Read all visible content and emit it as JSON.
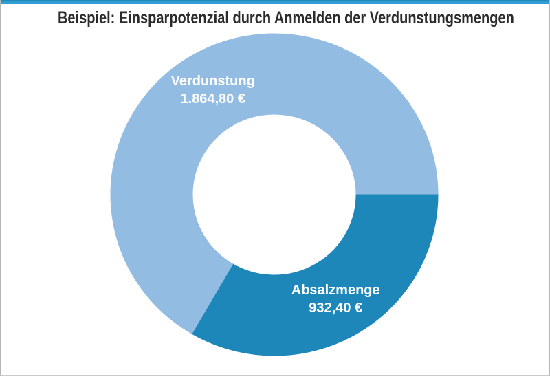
{
  "header": {
    "title": "Beispiel: Einsparpotenzial durch Anmelden der Verdunstungsmengen"
  },
  "chart_data": {
    "type": "pie",
    "subtype": "donut",
    "title": "Beispiel: Einsparpotenzial durch Anmelden der Verdunstungsmengen",
    "segments": [
      {
        "label": "Verdunstung",
        "value": 1864.8,
        "value_display": "1.864,80 €",
        "color": "#93BCE2"
      },
      {
        "label": "Absalzmenge",
        "value": 932.4,
        "value_display": "932,40 €",
        "color": "#1E87BA"
      }
    ],
    "total_value": 2797.2,
    "start_angle_deg": 210,
    "direction": "clockwise",
    "hole_ratio": 0.5,
    "labels_position": "inside-mid-ring, two lines (name above value)",
    "label_color": "#FFFFFF",
    "legend": "none"
  },
  "style": {
    "accent_bar_color": "#2E9BD3",
    "frame_border_color": "#B6B6B6",
    "title_color": "#2B2B2B",
    "background": "#FFFFFF"
  }
}
